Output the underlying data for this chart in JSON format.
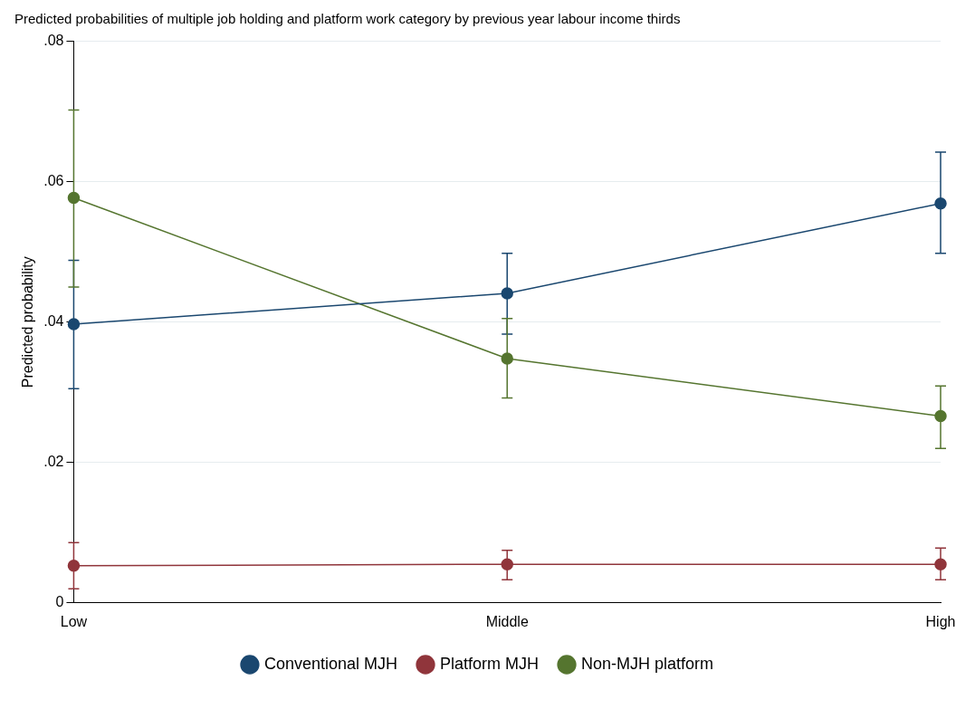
{
  "chart_data": {
    "type": "line",
    "title": "Predicted probabilities of multiple job holding and platform work category by previous year labour income thirds",
    "ylabel": "Predicted probability",
    "categories": [
      "Low",
      "Middle",
      "High"
    ],
    "series": [
      {
        "name": "Conventional MJH",
        "color": "#1a476f",
        "values": [
          0.0397,
          0.0441,
          0.0569
        ],
        "errors": [
          [
            0.0305,
            0.0488
          ],
          [
            0.0383,
            0.0498
          ],
          [
            0.0498,
            0.0642
          ]
        ]
      },
      {
        "name": "Platform MJH",
        "color": "#90353b",
        "values": [
          0.0053,
          0.0055,
          0.0055
        ],
        "errors": [
          [
            0.002,
            0.0086
          ],
          [
            0.0033,
            0.0075
          ],
          [
            0.0033,
            0.0078
          ]
        ]
      },
      {
        "name": "Non-MJH platform",
        "color": "#55752f",
        "values": [
          0.0577,
          0.0348,
          0.0266
        ],
        "errors": [
          [
            0.045,
            0.0702
          ],
          [
            0.0292,
            0.0405
          ],
          [
            0.022,
            0.0309
          ]
        ]
      }
    ],
    "ylim": [
      0,
      0.08
    ],
    "yticks": [
      {
        "value": 0,
        "label": "0"
      },
      {
        "value": 0.02,
        "label": ".02"
      },
      {
        "value": 0.04,
        "label": ".04"
      },
      {
        "value": 0.06,
        "label": ".06"
      },
      {
        "value": 0.08,
        "label": ".08"
      }
    ],
    "grid": "y",
    "legend": "bottom",
    "marker": "circle"
  }
}
